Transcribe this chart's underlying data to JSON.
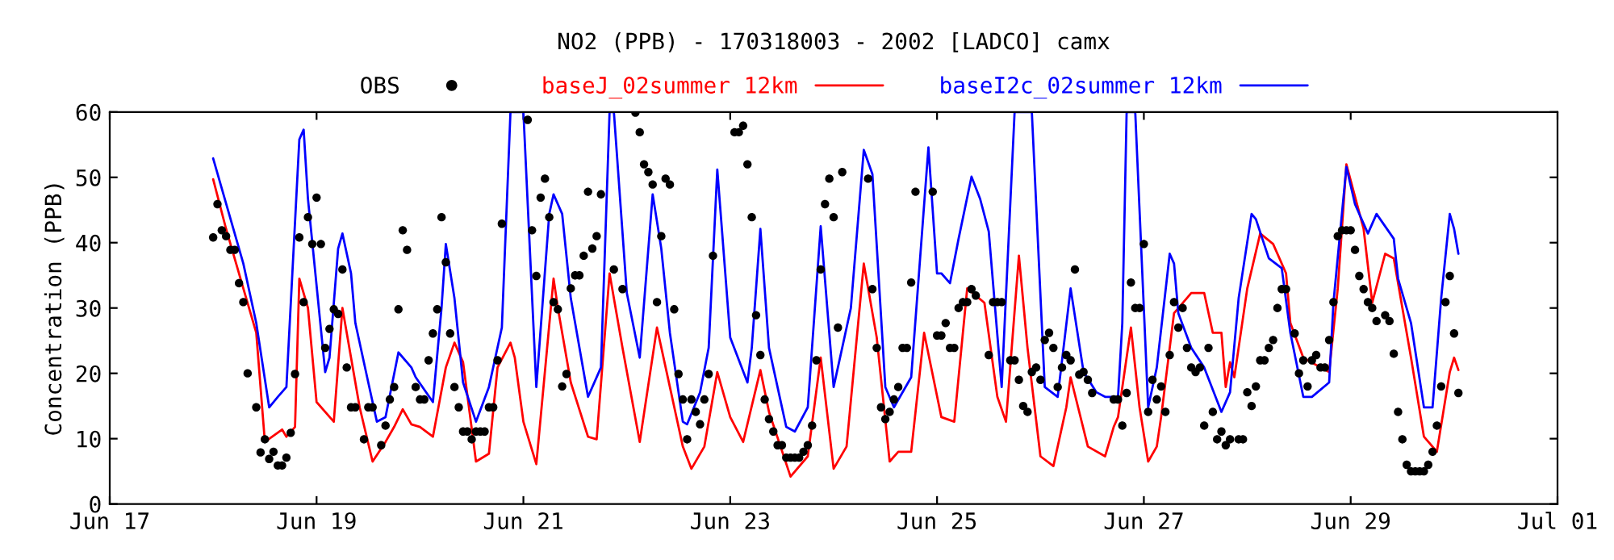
{
  "chart_data": {
    "type": "line",
    "title": "NO2 (PPB) - 170318003 - 2002 [LADCO] camx",
    "ylabel": "Concentration (PPB)",
    "xlim": [
      "2002-06-17T00:00",
      "2002-07-01T00:00"
    ],
    "xticks": [
      {
        "value": "2002-06-17",
        "label": "Jun 17"
      },
      {
        "value": "2002-06-19",
        "label": "Jun 19"
      },
      {
        "value": "2002-06-21",
        "label": "Jun 21"
      },
      {
        "value": "2002-06-23",
        "label": "Jun 23"
      },
      {
        "value": "2002-06-25",
        "label": "Jun 25"
      },
      {
        "value": "2002-06-27",
        "label": "Jun 27"
      },
      {
        "value": "2002-06-29",
        "label": "Jun 29"
      },
      {
        "value": "2002-07-01",
        "label": "Jul 01"
      }
    ],
    "ylim": [
      0,
      60
    ],
    "yticks": [
      0,
      10,
      20,
      30,
      40,
      50,
      60
    ],
    "grid": false,
    "legend": "top",
    "series": [
      {
        "name": "OBS",
        "type": "scatter",
        "marker": "circle",
        "color": "#000000",
        "x": [
          "2002-06-18T00:00",
          "2002-06-18T01:00",
          "2002-06-18T02:00",
          "2002-06-18T03:00",
          "2002-06-18T04:00",
          "2002-06-18T05:00",
          "2002-06-18T06:00",
          "2002-06-18T07:00",
          "2002-06-18T08:00",
          "2002-06-18T10:00",
          "2002-06-18T11:00",
          "2002-06-18T12:00",
          "2002-06-18T13:00",
          "2002-06-18T14:00",
          "2002-06-18T15:00",
          "2002-06-18T16:00",
          "2002-06-18T17:00",
          "2002-06-18T18:00",
          "2002-06-18T19:00",
          "2002-06-18T20:00",
          "2002-06-18T21:00",
          "2002-06-18T22:00",
          "2002-06-18T23:00",
          "2002-06-19T00:00",
          "2002-06-19T01:00",
          "2002-06-19T02:00",
          "2002-06-19T03:00",
          "2002-06-19T04:00",
          "2002-06-19T05:00",
          "2002-06-19T06:00",
          "2002-06-19T07:00",
          "2002-06-19T08:00",
          "2002-06-19T09:00",
          "2002-06-19T11:00",
          "2002-06-19T12:00",
          "2002-06-19T13:00",
          "2002-06-19T15:00",
          "2002-06-19T16:00",
          "2002-06-19T17:00",
          "2002-06-19T18:00",
          "2002-06-19T19:00",
          "2002-06-19T20:00",
          "2002-06-19T21:00",
          "2002-06-19T23:00",
          "2002-06-20T00:00",
          "2002-06-20T01:00",
          "2002-06-20T02:00",
          "2002-06-20T03:00",
          "2002-06-20T04:00",
          "2002-06-20T05:00",
          "2002-06-20T06:00",
          "2002-06-20T07:00",
          "2002-06-20T08:00",
          "2002-06-20T09:00",
          "2002-06-20T10:00",
          "2002-06-20T11:00",
          "2002-06-20T12:00",
          "2002-06-20T13:00",
          "2002-06-20T14:00",
          "2002-06-20T15:00",
          "2002-06-20T16:00",
          "2002-06-20T17:00",
          "2002-06-20T18:00",
          "2002-06-20T19:00",
          "2002-06-21T01:00",
          "2002-06-21T02:00",
          "2002-06-21T03:00",
          "2002-06-21T04:00",
          "2002-06-21T05:00",
          "2002-06-21T06:00",
          "2002-06-21T07:00",
          "2002-06-21T08:00",
          "2002-06-21T09:00",
          "2002-06-21T10:00",
          "2002-06-21T11:00",
          "2002-06-21T12:00",
          "2002-06-21T13:00",
          "2002-06-21T14:00",
          "2002-06-21T15:00",
          "2002-06-21T16:00",
          "2002-06-21T17:00",
          "2002-06-21T18:00",
          "2002-06-21T21:00",
          "2002-06-21T23:00",
          "2002-06-22T02:00",
          "2002-06-22T03:00",
          "2002-06-22T04:00",
          "2002-06-22T05:00",
          "2002-06-22T06:00",
          "2002-06-22T07:00",
          "2002-06-22T08:00",
          "2002-06-22T09:00",
          "2002-06-22T10:00",
          "2002-06-22T11:00",
          "2002-06-22T12:00",
          "2002-06-22T13:00",
          "2002-06-22T14:00",
          "2002-06-22T15:00",
          "2002-06-22T16:00",
          "2002-06-22T17:00",
          "2002-06-22T18:00",
          "2002-06-22T19:00",
          "2002-06-22T20:00",
          "2002-06-23T01:00",
          "2002-06-23T02:00",
          "2002-06-23T03:00",
          "2002-06-23T04:00",
          "2002-06-23T05:00",
          "2002-06-23T06:00",
          "2002-06-23T07:00",
          "2002-06-23T08:00",
          "2002-06-23T09:00",
          "2002-06-23T10:00",
          "2002-06-23T11:00",
          "2002-06-23T12:00",
          "2002-06-23T13:00",
          "2002-06-23T14:00",
          "2002-06-23T15:00",
          "2002-06-23T16:00",
          "2002-06-23T17:00",
          "2002-06-23T18:00",
          "2002-06-23T19:00",
          "2002-06-23T20:00",
          "2002-06-23T21:00",
          "2002-06-23T22:00",
          "2002-06-23T23:00",
          "2002-06-24T00:00",
          "2002-06-24T01:00",
          "2002-06-24T02:00",
          "2002-06-24T08:00",
          "2002-06-24T09:00",
          "2002-06-24T10:00",
          "2002-06-24T11:00",
          "2002-06-24T12:00",
          "2002-06-24T13:00",
          "2002-06-24T14:00",
          "2002-06-24T15:00",
          "2002-06-24T16:00",
          "2002-06-24T17:00",
          "2002-06-24T18:00",
          "2002-06-24T19:00",
          "2002-06-24T23:00",
          "2002-06-25T00:00",
          "2002-06-25T01:00",
          "2002-06-25T02:00",
          "2002-06-25T03:00",
          "2002-06-25T04:00",
          "2002-06-25T05:00",
          "2002-06-25T06:00",
          "2002-06-25T07:00",
          "2002-06-25T08:00",
          "2002-06-25T09:00",
          "2002-06-25T12:00",
          "2002-06-25T13:00",
          "2002-06-25T14:00",
          "2002-06-25T15:00",
          "2002-06-25T17:00",
          "2002-06-25T18:00",
          "2002-06-25T19:00",
          "2002-06-25T20:00",
          "2002-06-25T21:00",
          "2002-06-25T22:00",
          "2002-06-25T23:00",
          "2002-06-26T00:00",
          "2002-06-26T01:00",
          "2002-06-26T02:00",
          "2002-06-26T03:00",
          "2002-06-26T04:00",
          "2002-06-26T05:00",
          "2002-06-26T06:00",
          "2002-06-26T07:00",
          "2002-06-26T08:00",
          "2002-06-26T09:00",
          "2002-06-26T10:00",
          "2002-06-26T11:00",
          "2002-06-26T12:00",
          "2002-06-26T17:00",
          "2002-06-26T18:00",
          "2002-06-26T19:00",
          "2002-06-26T20:00",
          "2002-06-26T21:00",
          "2002-06-26T22:00",
          "2002-06-26T23:00",
          "2002-06-27T00:00",
          "2002-06-27T01:00",
          "2002-06-27T02:00",
          "2002-06-27T03:00",
          "2002-06-27T04:00",
          "2002-06-27T05:00",
          "2002-06-27T06:00",
          "2002-06-27T07:00",
          "2002-06-27T08:00",
          "2002-06-27T09:00",
          "2002-06-27T10:00",
          "2002-06-27T11:00",
          "2002-06-27T12:00",
          "2002-06-27T13:00",
          "2002-06-27T14:00",
          "2002-06-27T15:00",
          "2002-06-27T16:00",
          "2002-06-27T17:00",
          "2002-06-27T18:00",
          "2002-06-27T19:00",
          "2002-06-27T20:00",
          "2002-06-27T22:00",
          "2002-06-27T23:00",
          "2002-06-28T00:00",
          "2002-06-28T01:00",
          "2002-06-28T02:00",
          "2002-06-28T03:00",
          "2002-06-28T04:00",
          "2002-06-28T05:00",
          "2002-06-28T06:00",
          "2002-06-28T07:00",
          "2002-06-28T08:00",
          "2002-06-28T09:00",
          "2002-06-28T11:00",
          "2002-06-28T12:00",
          "2002-06-28T13:00",
          "2002-06-28T14:00",
          "2002-06-28T15:00",
          "2002-06-28T16:00",
          "2002-06-28T17:00",
          "2002-06-28T18:00",
          "2002-06-28T19:00",
          "2002-06-28T20:00",
          "2002-06-28T21:00",
          "2002-06-28T22:00",
          "2002-06-28T23:00",
          "2002-06-29T00:00",
          "2002-06-29T01:00",
          "2002-06-29T02:00",
          "2002-06-29T03:00",
          "2002-06-29T04:00",
          "2002-06-29T05:00",
          "2002-06-29T06:00",
          "2002-06-29T08:00",
          "2002-06-29T09:00",
          "2002-06-29T10:00",
          "2002-06-29T11:00",
          "2002-06-29T12:00",
          "2002-06-29T13:00",
          "2002-06-29T14:00",
          "2002-06-29T15:00",
          "2002-06-29T16:00",
          "2002-06-29T17:00",
          "2002-06-29T18:00",
          "2002-06-29T19:00",
          "2002-06-29T20:00",
          "2002-06-29T21:00",
          "2002-06-29T22:00",
          "2002-06-29T23:00",
          "2002-06-30T00:00",
          "2002-06-30T01:00"
        ],
        "values": [
          40.8,
          45.9,
          41.9,
          41,
          38.9,
          38.9,
          33.8,
          30.9,
          20,
          14.8,
          7.9,
          9.9,
          6.9,
          8,
          5.9,
          5.9,
          7.1,
          10.9,
          19.9,
          40.8,
          30.9,
          43.9,
          39.8,
          46.9,
          39.8,
          23.9,
          26.8,
          29.8,
          29.1,
          35.9,
          20.9,
          14.8,
          14.8,
          9.9,
          14.8,
          14.8,
          9,
          12,
          16,
          17.9,
          29.8,
          41.9,
          38.9,
          17.9,
          16,
          16,
          22,
          26.1,
          29.8,
          43.9,
          37,
          26.1,
          17.9,
          14.8,
          11.1,
          11.1,
          9.9,
          11.1,
          11.1,
          11.1,
          14.8,
          14.8,
          22,
          42.9,
          58.8,
          41.9,
          34.9,
          46.9,
          49.8,
          43.9,
          30.9,
          29.8,
          18,
          19.9,
          33,
          35,
          35,
          38,
          47.8,
          39.1,
          41,
          47.4,
          35.9,
          32.9,
          59.9,
          56.9,
          52,
          50.8,
          48.9,
          30.9,
          41,
          49.8,
          48.9,
          29.8,
          19.9,
          16,
          9.9,
          16,
          14.1,
          12.2,
          16,
          19.9,
          38,
          56.9,
          56.9,
          57.9,
          52,
          43.9,
          28.9,
          22.8,
          16,
          13,
          11.1,
          9,
          9,
          7.1,
          7.1,
          7.1,
          7.1,
          8,
          9,
          12,
          22,
          35.9,
          45.9,
          49.8,
          43.9,
          27,
          50.8,
          49.8,
          32.9,
          23.9,
          14.8,
          13,
          14.1,
          16,
          17.9,
          23.9,
          23.9,
          33.9,
          47.8,
          47.8,
          25.8,
          25.8,
          27.7,
          23.9,
          23.9,
          30,
          30.9,
          30.9,
          32.9,
          31.9,
          22.8,
          30.9,
          30.9,
          30.9,
          22,
          22,
          19,
          15,
          14.1,
          20.2,
          20.9,
          19,
          25.1,
          26.2,
          23.9,
          17.9,
          20.9,
          22.8,
          22,
          35.9,
          19.8,
          20.2,
          19,
          17,
          16,
          16,
          12,
          17,
          33.9,
          30,
          30,
          39.8,
          14.1,
          19,
          16,
          18,
          14.1,
          22.8,
          30.9,
          27,
          30,
          23.9,
          20.9,
          20.2,
          20.9,
          12,
          23.9,
          14.1,
          9.9,
          11.1,
          9,
          9.9,
          9.9,
          9.9,
          17.1,
          15,
          18,
          22,
          22,
          23.9,
          25.1,
          30,
          32.9,
          32.9,
          26.1,
          20,
          22,
          18,
          22,
          22.8,
          20.9,
          20.9,
          25.1,
          30.9,
          41,
          41.9,
          41.9,
          41.9,
          38.9,
          34.9,
          32.9,
          30.9,
          30,
          28,
          28.9,
          28,
          23,
          14.1,
          9.9,
          6,
          5,
          5,
          5,
          5,
          6,
          8,
          12,
          18,
          30.9,
          34.9,
          26.1,
          17
        ]
      },
      {
        "name": "baseJ_02summer 12km",
        "color": "#ff0000",
        "x": [
          "2002-06-18T00:00",
          "2002-06-18T03:00",
          "2002-06-18T07:00",
          "2002-06-18T10:00",
          "2002-06-18T12:00",
          "2002-06-18T16:00",
          "2002-06-18T17:00",
          "2002-06-18T19:00",
          "2002-06-18T20:00",
          "2002-06-18T22:00",
          "2002-06-19T00:00",
          "2002-06-19T04:00",
          "2002-06-19T06:00",
          "2002-06-19T08:00",
          "2002-06-19T10:00",
          "2002-06-19T13:00",
          "2002-06-19T16:00",
          "2002-06-19T18:00",
          "2002-06-19T20:00",
          "2002-06-19T22:00",
          "2002-06-20T00:00",
          "2002-06-20T03:00",
          "2002-06-20T06:00",
          "2002-06-20T08:00",
          "2002-06-20T10:00",
          "2002-06-20T13:00",
          "2002-06-20T16:00",
          "2002-06-20T18:00",
          "2002-06-20T21:00",
          "2002-06-20T22:00",
          "2002-06-21T00:00",
          "2002-06-21T03:00",
          "2002-06-21T07:00",
          "2002-06-21T08:00",
          "2002-06-21T11:00",
          "2002-06-21T15:00",
          "2002-06-21T17:00",
          "2002-06-21T20:00",
          "2002-06-21T23:00",
          "2002-06-22T03:00",
          "2002-06-22T07:00",
          "2002-06-22T10:00",
          "2002-06-22T13:00",
          "2002-06-22T15:00",
          "2002-06-22T18:00",
          "2002-06-22T21:00",
          "2002-06-23T00:00",
          "2002-06-23T03:00",
          "2002-06-23T07:00",
          "2002-06-23T09:00",
          "2002-06-23T14:00",
          "2002-06-23T18:00",
          "2002-06-23T21:00",
          "2002-06-24T00:00",
          "2002-06-24T03:00",
          "2002-06-24T07:00",
          "2002-06-24T10:00",
          "2002-06-24T13:00",
          "2002-06-24T15:00",
          "2002-06-24T18:00",
          "2002-06-24T21:00",
          "2002-06-25T01:00",
          "2002-06-25T04:00",
          "2002-06-25T07:00",
          "2002-06-25T11:00",
          "2002-06-25T14:00",
          "2002-06-25T16:00",
          "2002-06-25T19:00",
          "2002-06-25T21:00",
          "2002-06-26T00:00",
          "2002-06-26T03:00",
          "2002-06-26T06:00",
          "2002-06-26T07:00",
          "2002-06-26T11:00",
          "2002-06-26T15:00",
          "2002-06-26T17:00",
          "2002-06-26T18:00",
          "2002-06-26T21:00",
          "2002-06-26T23:00",
          "2002-06-27T01:00",
          "2002-06-27T03:00",
          "2002-06-27T04:00",
          "2002-06-27T07:00",
          "2002-06-27T11:00",
          "2002-06-27T14:00",
          "2002-06-27T16:00",
          "2002-06-27T18:00",
          "2002-06-27T19:00",
          "2002-06-27T20:00",
          "2002-06-27T21:00",
          "2002-06-28T00:00",
          "2002-06-28T03:00",
          "2002-06-28T06:00",
          "2002-06-28T09:00",
          "2002-06-28T10:00",
          "2002-06-28T13:00",
          "2002-06-28T17:00",
          "2002-06-28T19:00",
          "2002-06-28T21:00",
          "2002-06-28T23:00",
          "2002-06-29T03:00",
          "2002-06-29T05:00",
          "2002-06-29T08:00",
          "2002-06-29T10:00",
          "2002-06-29T14:00",
          "2002-06-29T17:00",
          "2002-06-29T20:00",
          "2002-06-29T23:00",
          "2002-06-30T00:00",
          "2002-06-30T01:00"
        ],
        "values": [
          49.7,
          42.1,
          33,
          26.2,
          9.5,
          11.4,
          10.3,
          11.8,
          34.5,
          30,
          15.6,
          12.6,
          30,
          22.4,
          14.8,
          6.5,
          9.5,
          11.8,
          14.5,
          12.2,
          11.8,
          10.3,
          20.9,
          24.7,
          21.7,
          6.5,
          7.7,
          20.9,
          24.7,
          22.4,
          12.6,
          6.1,
          34.5,
          30,
          18.6,
          10.3,
          9.9,
          35.3,
          23.9,
          9.5,
          27,
          17.9,
          8.8,
          5.4,
          8.8,
          20.2,
          13.3,
          9.5,
          20.5,
          14.1,
          4.2,
          7.3,
          22.4,
          5.4,
          8.8,
          36.8,
          25.5,
          6.5,
          8,
          8,
          26.2,
          13.3,
          12.6,
          33,
          30.8,
          16.4,
          12.6,
          38,
          23.9,
          7.3,
          5.8,
          14.8,
          19.4,
          8.8,
          7.3,
          11.8,
          13.3,
          27,
          14.8,
          6.5,
          8.8,
          13.3,
          29.2,
          32.3,
          32.3,
          26.2,
          26.2,
          17.9,
          21.7,
          19.4,
          33,
          41.4,
          39.8,
          35.3,
          27.7,
          22.4,
          20.9,
          20.2,
          33,
          52,
          42.1,
          30.8,
          38.3,
          37.6,
          22.4,
          10.3,
          8,
          20.2,
          22.4,
          20.5
        ]
      },
      {
        "name": "baseI2c_02summer 12km",
        "color": "#0000ff",
        "x": [
          "2002-06-18T00:00",
          "2002-06-18T07:00",
          "2002-06-18T10:00",
          "2002-06-18T13:00",
          "2002-06-18T15:00",
          "2002-06-18T17:00",
          "2002-06-18T20:00",
          "2002-06-18T21:00",
          "2002-06-18T22:00",
          "2002-06-19T02:00",
          "2002-06-19T03:00",
          "2002-06-19T05:00",
          "2002-06-19T06:00",
          "2002-06-19T08:00",
          "2002-06-19T09:00",
          "2002-06-19T12:00",
          "2002-06-19T14:00",
          "2002-06-19T16:00",
          "2002-06-19T19:00",
          "2002-06-19T22:00",
          "2002-06-19T23:00",
          "2002-06-20T03:00",
          "2002-06-20T05:00",
          "2002-06-20T06:00",
          "2002-06-20T08:00",
          "2002-06-20T10:00",
          "2002-06-20T13:00",
          "2002-06-20T16:00",
          "2002-06-20T19:00",
          "2002-06-20T21:00",
          "2002-06-21T00:00",
          "2002-06-21T03:00",
          "2002-06-21T06:00",
          "2002-06-21T07:00",
          "2002-06-21T09:00",
          "2002-06-21T11:00",
          "2002-06-21T15:00",
          "2002-06-21T18:00",
          "2002-06-21T20:00",
          "2002-06-21T21:00",
          "2002-06-22T00:00",
          "2002-06-22T03:00",
          "2002-06-22T06:00",
          "2002-06-22T08:00",
          "2002-06-22T10:00",
          "2002-06-22T13:00",
          "2002-06-22T14:00",
          "2002-06-22T17:00",
          "2002-06-22T19:00",
          "2002-06-22T21:00",
          "2002-06-23T00:00",
          "2002-06-23T04:00",
          "2002-06-23T05:00",
          "2002-06-23T07:00",
          "2002-06-23T09:00",
          "2002-06-23T13:00",
          "2002-06-23T15:00",
          "2002-06-23T18:00",
          "2002-06-23T21:00",
          "2002-06-24T00:00",
          "2002-06-24T04:00",
          "2002-06-24T07:00",
          "2002-06-24T09:00",
          "2002-06-24T12:00",
          "2002-06-24T14:00",
          "2002-06-24T18:00",
          "2002-06-24T22:00",
          "2002-06-25T00:00",
          "2002-06-25T01:00",
          "2002-06-25T03:00",
          "2002-06-25T05:00",
          "2002-06-25T08:00",
          "2002-06-25T10:00",
          "2002-06-25T12:00",
          "2002-06-25T15:00",
          "2002-06-25T18:00",
          "2002-06-25T22:00",
          "2002-06-26T01:00",
          "2002-06-26T04:00",
          "2002-06-26T07:00",
          "2002-06-26T10:00",
          "2002-06-26T13:00",
          "2002-06-26T15:00",
          "2002-06-26T18:00",
          "2002-06-26T19:00",
          "2002-06-26T20:00",
          "2002-06-26T22:00",
          "2002-06-27T01:00",
          "2002-06-27T03:00",
          "2002-06-27T06:00",
          "2002-06-27T07:00",
          "2002-06-27T08:00",
          "2002-06-27T11:00",
          "2002-06-27T14:00",
          "2002-06-27T18:00",
          "2002-06-27T20:00",
          "2002-06-27T22:00",
          "2002-06-28T01:00",
          "2002-06-28T02:00",
          "2002-06-28T05:00",
          "2002-06-28T08:00",
          "2002-06-28T10:00",
          "2002-06-28T13:00",
          "2002-06-28T15:00",
          "2002-06-28T19:00",
          "2002-06-28T20:00",
          "2002-06-28T23:00",
          "2002-06-29T01:00",
          "2002-06-29T04:00",
          "2002-06-29T06:00",
          "2002-06-29T10:00",
          "2002-06-29T11:00",
          "2002-06-29T14:00",
          "2002-06-29T17:00",
          "2002-06-29T19:00",
          "2002-06-29T21:00",
          "2002-06-29T23:00",
          "2002-06-30T00:00",
          "2002-06-30T01:00"
        ],
        "values": [
          52.9,
          36.8,
          27.7,
          14.8,
          16.4,
          17.9,
          55.8,
          57.3,
          46.7,
          20.2,
          22.4,
          39.1,
          41.4,
          35.3,
          27.7,
          18.6,
          12.6,
          13.3,
          23.2,
          20.9,
          19.4,
          15.6,
          30,
          39.8,
          31.5,
          18.6,
          12.6,
          17.9,
          27,
          60,
          60,
          17.9,
          44.4,
          47.4,
          44.4,
          31.5,
          16.4,
          20.9,
          60,
          60,
          32.3,
          22.4,
          47.4,
          39.1,
          26.2,
          12.6,
          12.2,
          17.1,
          23.9,
          51.2,
          25.5,
          18.6,
          23.9,
          42.1,
          23.9,
          11.8,
          11.1,
          14.8,
          42.5,
          17.9,
          30,
          54.2,
          50.5,
          17.9,
          14.8,
          19.4,
          54.6,
          35.3,
          35.3,
          33.8,
          40.6,
          50.1,
          46.7,
          41.7,
          17.9,
          60,
          60,
          17.9,
          16.4,
          33,
          20.2,
          17.1,
          16.4,
          16.4,
          27.7,
          60,
          60,
          14.8,
          20.9,
          38.3,
          36.8,
          29.2,
          23.9,
          20.9,
          14.1,
          17.1,
          31.5,
          44.4,
          43.6,
          37.6,
          36.1,
          26.2,
          16.4,
          16.4,
          18.6,
          30.8,
          51.6,
          45.9,
          41.4,
          44.4,
          40.6,
          34.5,
          27.7,
          14.8,
          14.8,
          31.5,
          44.4,
          42.1,
          38.3
        ]
      }
    ]
  }
}
